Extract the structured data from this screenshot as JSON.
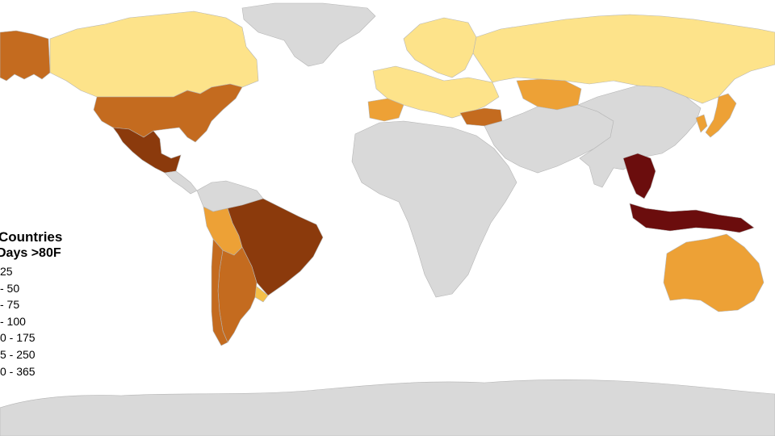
{
  "legend": {
    "title": "Countries",
    "subtitle": "Days >80F",
    "items": [
      {
        "label": "25",
        "color": "#ffffff"
      },
      {
        "label": "- 50",
        "color": "#fde38a"
      },
      {
        "label": "- 75",
        "color": "#f5c049"
      },
      {
        "label": "- 100",
        "color": "#eda136"
      },
      {
        "label": "0 - 175",
        "color": "#c46b1f"
      },
      {
        "label": "5 - 250",
        "color": "#8b3a0c"
      },
      {
        "label": "0 - 365",
        "color": "#6b0d0d"
      }
    ]
  },
  "colors": {
    "no_data": "#d9d9d9",
    "ocean": "#ffffff",
    "border": "#b5b5b5"
  },
  "regions": [
    {
      "name": "greenland",
      "class": "none"
    },
    {
      "name": "canada",
      "class": "c1"
    },
    {
      "name": "alaska",
      "class": "c4"
    },
    {
      "name": "usa",
      "class": "c4"
    },
    {
      "name": "mexico",
      "class": "c5"
    },
    {
      "name": "central-america",
      "class": "none"
    },
    {
      "name": "colombia",
      "class": "none"
    },
    {
      "name": "peru",
      "class": "c3"
    },
    {
      "name": "brazil",
      "class": "c5"
    },
    {
      "name": "argentina",
      "class": "c4"
    },
    {
      "name": "chile",
      "class": "c4"
    },
    {
      "name": "uruguay",
      "class": "c2"
    },
    {
      "name": "scandinavia",
      "class": "c1"
    },
    {
      "name": "europe",
      "class": "c1"
    },
    {
      "name": "iberia",
      "class": "c3"
    },
    {
      "name": "turkey",
      "class": "c4"
    },
    {
      "name": "russia",
      "class": "c1"
    },
    {
      "name": "kazakhstan",
      "class": "c3"
    },
    {
      "name": "africa",
      "class": "none"
    },
    {
      "name": "middle-east",
      "class": "none"
    },
    {
      "name": "asia",
      "class": "none"
    },
    {
      "name": "japan",
      "class": "c3"
    },
    {
      "name": "korea",
      "class": "c3"
    },
    {
      "name": "southeast-asia",
      "class": "c6"
    },
    {
      "name": "indonesia",
      "class": "c6"
    },
    {
      "name": "australia",
      "class": "c3"
    },
    {
      "name": "antarctica",
      "class": "none"
    }
  ]
}
